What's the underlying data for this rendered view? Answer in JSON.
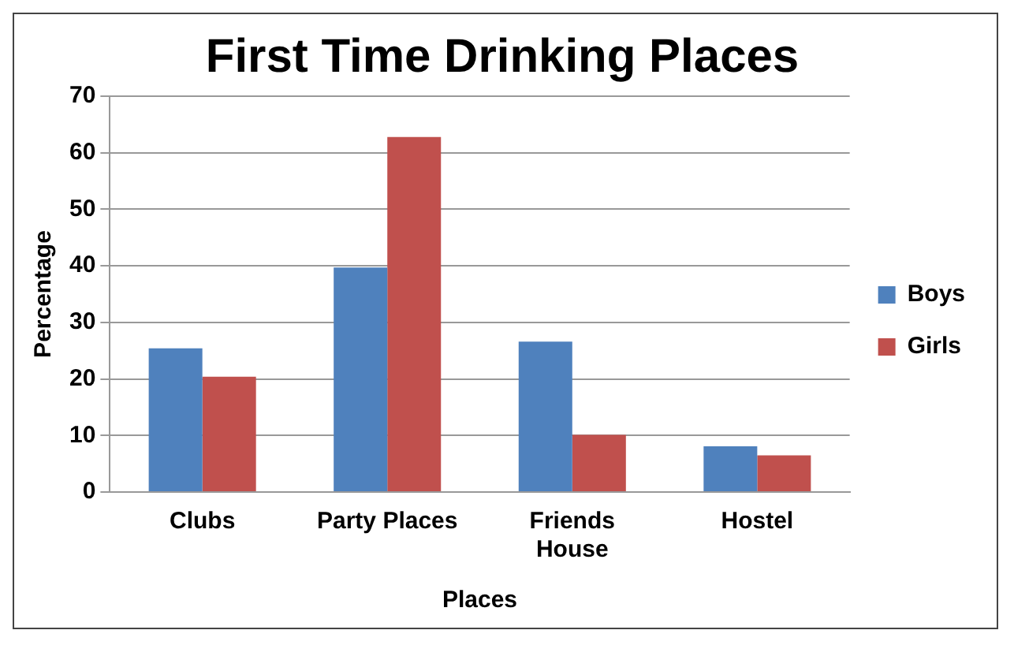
{
  "chart_data": {
    "type": "bar",
    "title": "First Time Drinking Places",
    "xlabel": "Places",
    "ylabel": "Percentage",
    "categories": [
      "Clubs",
      "Party Places",
      "Friends House",
      "Hostel"
    ],
    "series": [
      {
        "name": "Boys",
        "color": "#4f81bd",
        "values": [
          25.4,
          39.7,
          26.6,
          8.1
        ]
      },
      {
        "name": "Girls",
        "color": "#c0504d",
        "values": [
          20.4,
          62.8,
          10.1,
          6.5
        ]
      }
    ],
    "ylim": [
      0,
      70
    ],
    "yticks": [
      0,
      10,
      20,
      30,
      40,
      50,
      60,
      70
    ],
    "grid": "y",
    "legend": "right"
  }
}
